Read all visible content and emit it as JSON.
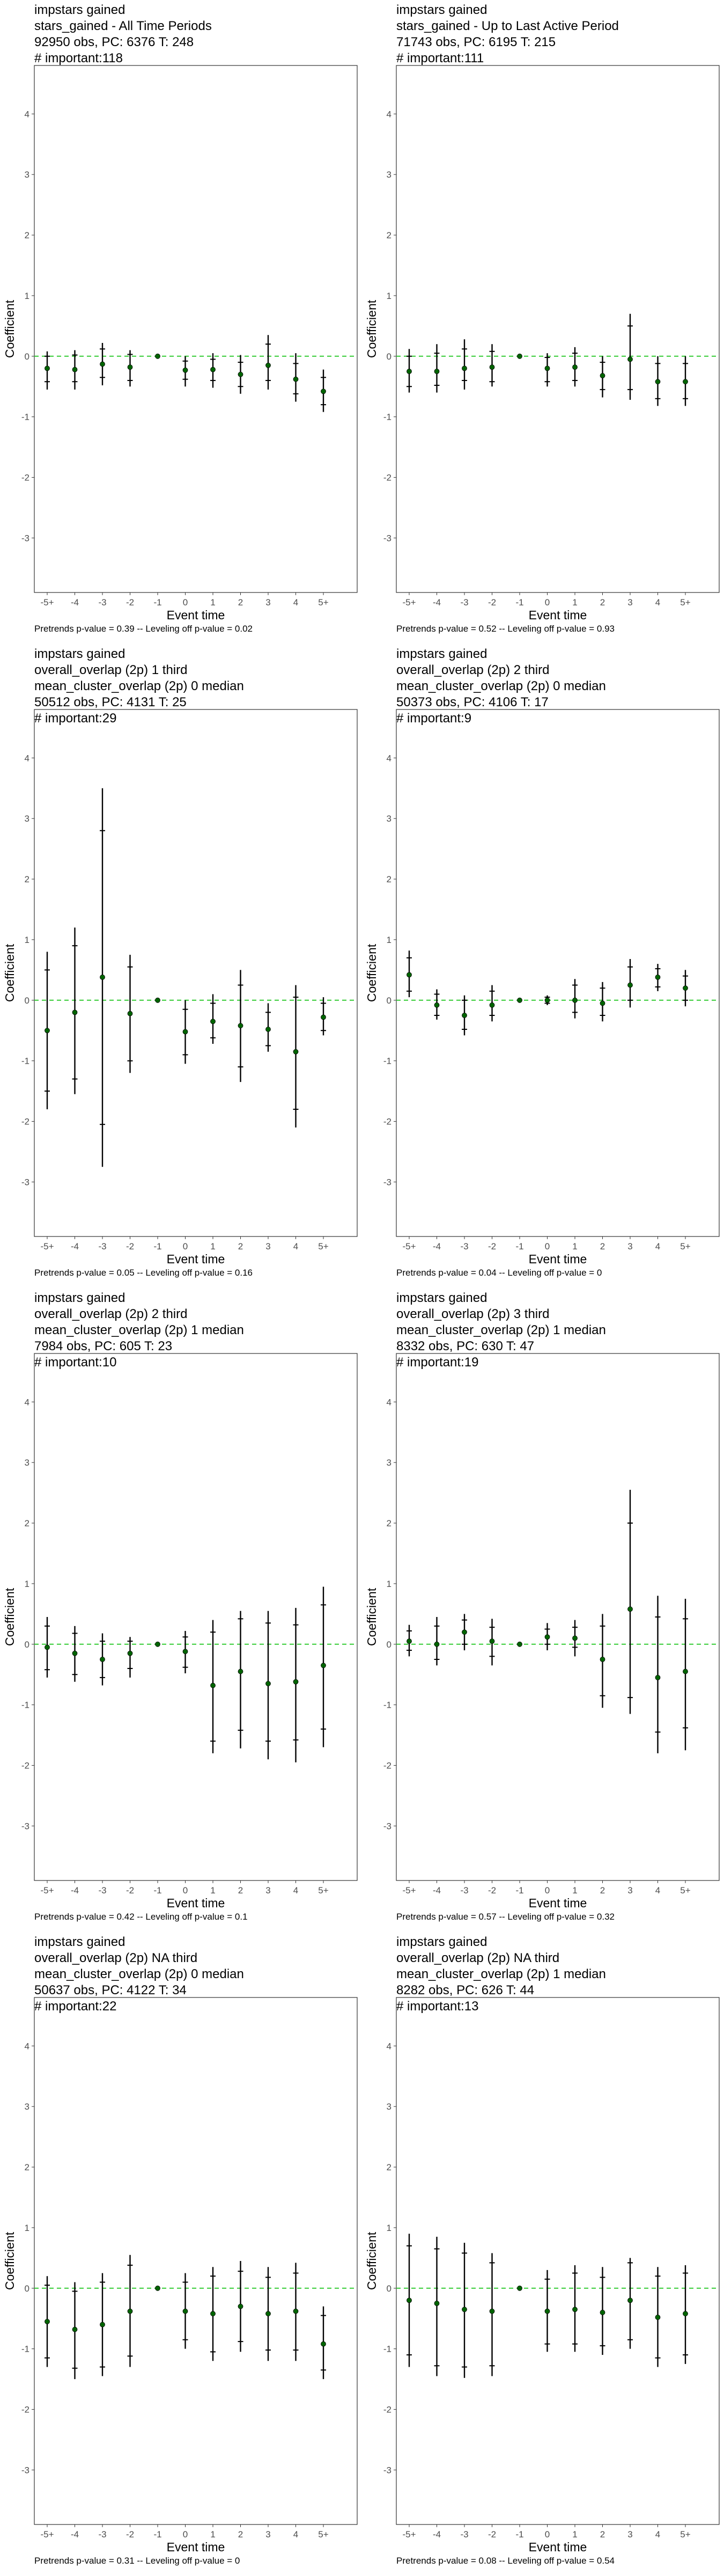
{
  "axes": {
    "xlabel": "Event time",
    "ylabel": "Coefficient",
    "x_ticks": [
      "-5+",
      "-4",
      "-3",
      "-2",
      "-1",
      "0",
      "1",
      "2",
      "3",
      "4",
      "5+"
    ],
    "y_ticks": [
      -3,
      -2,
      -1,
      0,
      1,
      2,
      3,
      4
    ],
    "ylim": [
      -3.9,
      4.8
    ]
  },
  "colors": {
    "zero_line": "#33cc33",
    "point": "#006400",
    "error_bar": "#000000",
    "axis": "#333333",
    "tick_text": "#4d4d4d"
  },
  "chart_data": [
    {
      "type": "scatter",
      "title_lines": [
        "impstars gained",
        "stars_gained - All Time Periods",
        "92950 obs, PC: 6376 T: 248",
        "# important:118"
      ],
      "footnote": "Pretrends p-value = 0.39 -- Leveling off p-value = 0.02",
      "x": [
        "-5+",
        "-4",
        "-3",
        "-2",
        "-1",
        "0",
        "1",
        "2",
        "3",
        "4",
        "5+"
      ],
      "y": [
        -0.2,
        -0.22,
        -0.13,
        -0.18,
        0,
        -0.23,
        -0.22,
        -0.3,
        -0.15,
        -0.38,
        -0.58
      ],
      "ci_outer": [
        [
          -0.55,
          0.08
        ],
        [
          -0.55,
          0.1
        ],
        [
          -0.48,
          0.22
        ],
        [
          -0.5,
          0.1
        ],
        [
          0,
          0
        ],
        [
          -0.5,
          0.0
        ],
        [
          -0.52,
          0.05
        ],
        [
          -0.62,
          0.02
        ],
        [
          -0.55,
          0.35
        ],
        [
          -0.75,
          0.05
        ],
        [
          -0.92,
          -0.22
        ]
      ],
      "ci_inner": [
        [
          -0.42,
          0.0
        ],
        [
          -0.42,
          0.02
        ],
        [
          -0.35,
          0.12
        ],
        [
          -0.4,
          0.03
        ],
        [
          0,
          0
        ],
        [
          -0.38,
          -0.08
        ],
        [
          -0.4,
          -0.05
        ],
        [
          -0.5,
          -0.1
        ],
        [
          -0.4,
          0.2
        ],
        [
          -0.62,
          -0.12
        ],
        [
          -0.8,
          -0.35
        ]
      ]
    },
    {
      "type": "scatter",
      "title_lines": [
        "impstars gained",
        "stars_gained - Up to Last Active Period",
        "71743 obs, PC: 6195 T: 215",
        "# important:111"
      ],
      "footnote": "Pretrends p-value = 0.52 -- Leveling off p-value = 0.93",
      "x": [
        "-5+",
        "-4",
        "-3",
        "-2",
        "-1",
        "0",
        "1",
        "2",
        "3",
        "4",
        "5+"
      ],
      "y": [
        -0.25,
        -0.25,
        -0.2,
        -0.18,
        0,
        -0.2,
        -0.18,
        -0.32,
        -0.05,
        -0.42,
        -0.42
      ],
      "ci_outer": [
        [
          -0.6,
          0.12
        ],
        [
          -0.6,
          0.2
        ],
        [
          -0.55,
          0.28
        ],
        [
          -0.5,
          0.2
        ],
        [
          0,
          0
        ],
        [
          -0.5,
          0.05
        ],
        [
          -0.5,
          0.15
        ],
        [
          -0.68,
          0.0
        ],
        [
          -0.72,
          0.7
        ],
        [
          -0.82,
          0.0
        ],
        [
          -0.82,
          0.0
        ]
      ],
      "ci_inner": [
        [
          -0.5,
          0.0
        ],
        [
          -0.48,
          0.05
        ],
        [
          -0.4,
          0.12
        ],
        [
          -0.42,
          0.08
        ],
        [
          0,
          0
        ],
        [
          -0.42,
          -0.02
        ],
        [
          -0.4,
          0.05
        ],
        [
          -0.55,
          -0.1
        ],
        [
          -0.55,
          0.5
        ],
        [
          -0.7,
          -0.12
        ],
        [
          -0.7,
          -0.12
        ]
      ]
    },
    {
      "type": "scatter",
      "title_lines": [
        "impstars gained",
        "overall_overlap (2p) 1 third",
        "mean_cluster_overlap (2p) 0 median",
        "50512 obs, PC: 4131 T: 25",
        "# important:29"
      ],
      "footnote": "Pretrends p-value = 0.05 -- Leveling off p-value = 0.16",
      "x": [
        "-5+",
        "-4",
        "-3",
        "-2",
        "-1",
        "0",
        "1",
        "2",
        "3",
        "4",
        "5+"
      ],
      "y": [
        -0.5,
        -0.2,
        0.38,
        -0.22,
        0,
        -0.52,
        -0.35,
        -0.42,
        -0.48,
        -0.85,
        -0.28
      ],
      "ci_outer": [
        [
          -1.8,
          0.8
        ],
        [
          -1.55,
          1.2
        ],
        [
          -2.75,
          3.5
        ],
        [
          -1.2,
          0.75
        ],
        [
          0,
          0
        ],
        [
          -1.05,
          0.0
        ],
        [
          -0.72,
          0.1
        ],
        [
          -1.35,
          0.5
        ],
        [
          -0.85,
          -0.05
        ],
        [
          -2.1,
          0.25
        ],
        [
          -0.58,
          0.05
        ]
      ],
      "ci_inner": [
        [
          -1.5,
          0.5
        ],
        [
          -1.3,
          0.9
        ],
        [
          -2.05,
          2.8
        ],
        [
          -1.0,
          0.55
        ],
        [
          0,
          0
        ],
        [
          -0.9,
          -0.15
        ],
        [
          -0.62,
          -0.05
        ],
        [
          -1.1,
          0.25
        ],
        [
          -0.75,
          -0.2
        ],
        [
          -1.8,
          0.05
        ],
        [
          -0.5,
          -0.05
        ]
      ]
    },
    {
      "type": "scatter",
      "title_lines": [
        "impstars gained",
        "overall_overlap (2p) 2 third",
        "mean_cluster_overlap (2p) 0 median",
        "50373 obs, PC: 4106 T: 17",
        "# important:9"
      ],
      "footnote": "Pretrends p-value = 0.04 -- Leveling off p-value = 0",
      "x": [
        "-5+",
        "-4",
        "-3",
        "-2",
        "-1",
        "0",
        "1",
        "2",
        "3",
        "4",
        "5+"
      ],
      "y": [
        0.42,
        -0.08,
        -0.25,
        -0.08,
        0,
        0.0,
        0.0,
        -0.05,
        0.25,
        0.38,
        0.2
      ],
      "ci_outer": [
        [
          0.05,
          0.82
        ],
        [
          -0.32,
          0.18
        ],
        [
          -0.58,
          0.08
        ],
        [
          -0.35,
          0.25
        ],
        [
          0,
          0
        ],
        [
          -0.08,
          0.08
        ],
        [
          -0.3,
          0.35
        ],
        [
          -0.35,
          0.3
        ],
        [
          -0.12,
          0.68
        ],
        [
          0.15,
          0.6
        ],
        [
          -0.1,
          0.5
        ]
      ],
      "ci_inner": [
        [
          0.15,
          0.7
        ],
        [
          -0.25,
          0.1
        ],
        [
          -0.48,
          0.0
        ],
        [
          -0.25,
          0.15
        ],
        [
          0,
          0
        ],
        [
          -0.05,
          0.05
        ],
        [
          -0.2,
          0.25
        ],
        [
          -0.25,
          0.2
        ],
        [
          0.0,
          0.55
        ],
        [
          0.22,
          0.52
        ],
        [
          0.0,
          0.4
        ]
      ]
    },
    {
      "type": "scatter",
      "title_lines": [
        "impstars gained",
        "overall_overlap (2p) 2 third",
        "mean_cluster_overlap (2p) 1 median",
        "7984 obs, PC: 605 T: 23",
        "# important:10"
      ],
      "footnote": "Pretrends p-value = 0.42 -- Leveling off p-value = 0.1",
      "x": [
        "-5+",
        "-4",
        "-3",
        "-2",
        "-1",
        "0",
        "1",
        "2",
        "3",
        "4",
        "5+"
      ],
      "y": [
        -0.05,
        -0.15,
        -0.25,
        -0.15,
        0,
        -0.12,
        -0.68,
        -0.45,
        -0.65,
        -0.62,
        -0.35
      ],
      "ci_outer": [
        [
          -0.55,
          0.45
        ],
        [
          -0.62,
          0.3
        ],
        [
          -0.68,
          0.18
        ],
        [
          -0.55,
          0.12
        ],
        [
          0,
          0
        ],
        [
          -0.48,
          0.22
        ],
        [
          -1.8,
          0.4
        ],
        [
          -1.72,
          0.55
        ],
        [
          -1.9,
          0.55
        ],
        [
          -1.95,
          0.6
        ],
        [
          -1.7,
          0.95
        ]
      ],
      "ci_inner": [
        [
          -0.42,
          0.3
        ],
        [
          -0.5,
          0.18
        ],
        [
          -0.55,
          0.05
        ],
        [
          -0.4,
          0.05
        ],
        [
          0,
          0
        ],
        [
          -0.38,
          0.12
        ],
        [
          -1.6,
          0.2
        ],
        [
          -1.42,
          0.42
        ],
        [
          -1.6,
          0.35
        ],
        [
          -1.58,
          0.32
        ],
        [
          -1.4,
          0.65
        ]
      ]
    },
    {
      "type": "scatter",
      "title_lines": [
        "impstars gained",
        "overall_overlap (2p) 3 third",
        "mean_cluster_overlap (2p) 1 median",
        "8332 obs, PC: 630 T: 47",
        "# important:19"
      ],
      "footnote": "Pretrends p-value = 0.57 -- Leveling off p-value = 0.32",
      "x": [
        "-5+",
        "-4",
        "-3",
        "-2",
        "-1",
        "0",
        "1",
        "2",
        "3",
        "4",
        "5+"
      ],
      "y": [
        0.05,
        0.0,
        0.2,
        0.05,
        0,
        0.12,
        0.1,
        -0.25,
        0.58,
        -0.55,
        -0.45
      ],
      "ci_outer": [
        [
          -0.2,
          0.32
        ],
        [
          -0.35,
          0.45
        ],
        [
          -0.1,
          0.5
        ],
        [
          -0.35,
          0.42
        ],
        [
          0,
          0
        ],
        [
          -0.1,
          0.35
        ],
        [
          -0.2,
          0.4
        ],
        [
          -1.05,
          0.5
        ],
        [
          -1.15,
          2.55
        ],
        [
          -1.8,
          0.8
        ],
        [
          -1.75,
          0.75
        ]
      ],
      "ci_inner": [
        [
          -0.1,
          0.22
        ],
        [
          -0.25,
          0.3
        ],
        [
          0.0,
          0.4
        ],
        [
          -0.2,
          0.28
        ],
        [
          0,
          0
        ],
        [
          0.0,
          0.25
        ],
        [
          -0.05,
          0.28
        ],
        [
          -0.85,
          0.3
        ],
        [
          -0.88,
          2.0
        ],
        [
          -1.45,
          0.45
        ],
        [
          -1.38,
          0.42
        ]
      ]
    },
    {
      "type": "scatter",
      "title_lines": [
        "impstars gained",
        "overall_overlap (2p) NA third",
        "mean_cluster_overlap (2p) 0 median",
        "50637 obs, PC: 4122 T: 34",
        "# important:22"
      ],
      "footnote": "Pretrends p-value = 0.31 -- Leveling off p-value = 0",
      "x": [
        "-5+",
        "-4",
        "-3",
        "-2",
        "-1",
        "0",
        "1",
        "2",
        "3",
        "4",
        "5+"
      ],
      "y": [
        -0.55,
        -0.68,
        -0.6,
        -0.38,
        0,
        -0.38,
        -0.42,
        -0.3,
        -0.42,
        -0.38,
        -0.92
      ],
      "ci_outer": [
        [
          -1.3,
          0.2
        ],
        [
          -1.5,
          0.1
        ],
        [
          -1.45,
          0.25
        ],
        [
          -1.3,
          0.55
        ],
        [
          0,
          0
        ],
        [
          -1.0,
          0.25
        ],
        [
          -1.2,
          0.35
        ],
        [
          -1.05,
          0.45
        ],
        [
          -1.2,
          0.35
        ],
        [
          -1.2,
          0.42
        ],
        [
          -1.5,
          -0.3
        ]
      ],
      "ci_inner": [
        [
          -1.15,
          0.05
        ],
        [
          -1.32,
          -0.05
        ],
        [
          -1.3,
          0.1
        ],
        [
          -1.12,
          0.38
        ],
        [
          0,
          0
        ],
        [
          -0.85,
          0.1
        ],
        [
          -1.05,
          0.2
        ],
        [
          -0.88,
          0.28
        ],
        [
          -1.02,
          0.18
        ],
        [
          -1.02,
          0.25
        ],
        [
          -1.35,
          -0.45
        ]
      ]
    },
    {
      "type": "scatter",
      "title_lines": [
        "impstars gained",
        "overall_overlap (2p) NA third",
        "mean_cluster_overlap (2p) 1 median",
        "8282 obs, PC: 626 T: 44",
        "# important:13"
      ],
      "footnote": "Pretrends p-value = 0.08 -- Leveling off p-value = 0.54",
      "x": [
        "-5+",
        "-4",
        "-3",
        "-2",
        "-1",
        "0",
        "1",
        "2",
        "3",
        "4",
        "5+"
      ],
      "y": [
        -0.2,
        -0.25,
        -0.35,
        -0.38,
        0,
        -0.38,
        -0.35,
        -0.4,
        -0.2,
        -0.48,
        -0.42
      ],
      "ci_outer": [
        [
          -1.3,
          0.9
        ],
        [
          -1.45,
          0.85
        ],
        [
          -1.48,
          0.75
        ],
        [
          -1.45,
          0.58
        ],
        [
          0,
          0
        ],
        [
          -1.05,
          0.3
        ],
        [
          -1.05,
          0.38
        ],
        [
          -1.1,
          0.35
        ],
        [
          -1.0,
          0.5
        ],
        [
          -1.3,
          0.35
        ],
        [
          -1.25,
          0.38
        ]
      ],
      "ci_inner": [
        [
          -1.1,
          0.7
        ],
        [
          -1.28,
          0.65
        ],
        [
          -1.3,
          0.58
        ],
        [
          -1.28,
          0.42
        ],
        [
          0,
          0
        ],
        [
          -0.92,
          0.15
        ],
        [
          -0.92,
          0.25
        ],
        [
          -0.95,
          0.18
        ],
        [
          -0.85,
          0.42
        ],
        [
          -1.15,
          0.2
        ],
        [
          -1.1,
          0.25
        ]
      ]
    }
  ]
}
